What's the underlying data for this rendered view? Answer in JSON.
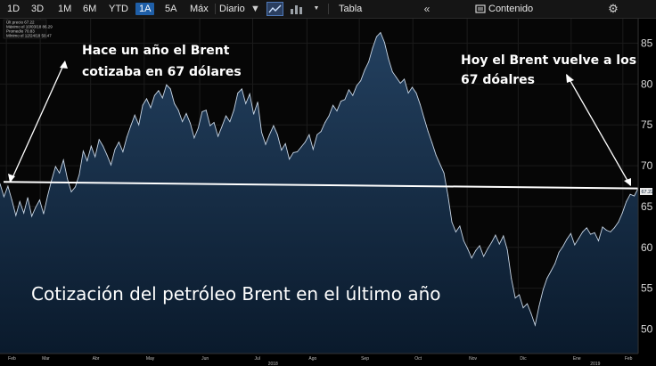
{
  "toolbar": {
    "ranges": [
      "1D",
      "3D",
      "1M",
      "6M",
      "YTD",
      "1A",
      "5A",
      "Máx"
    ],
    "active_range": "1A",
    "frequency": "Diario",
    "table_label": "Tabla",
    "content_label": "Contenido",
    "icons": {
      "dropdown": "dropdown-arrow-icon",
      "line_chart": "line-chart-icon",
      "bar_chart": "bar-chart-icon",
      "small_dropdown": "small-dropdown-icon",
      "collapse": "double-chevron-left-icon",
      "content": "content-settings-icon",
      "gear": "gear-icon"
    }
  },
  "legend": [
    "Últ precio  67.22",
    "Máximo el 10/03/18  86.29",
    "Promedio  70.83",
    "Mínimo el 12/24/18  50.47"
  ],
  "annotations": {
    "left": [
      "Hace un año el Brent",
      "cotizaba en 67 dólares"
    ],
    "right": [
      "Hoy el Brent vuelve  a los",
      "67 dóalres"
    ],
    "title": "Cotización del petróleo Brent en el último año"
  },
  "last_price_badge": "67.22",
  "chart_data": {
    "type": "area",
    "ylim": [
      47,
      88
    ],
    "yticks": [
      50,
      55,
      60,
      65,
      70,
      75,
      80,
      85
    ],
    "x_month_labels": [
      "Feb",
      "Mar",
      "Abr",
      "May",
      "Jun",
      "Jul",
      "Ago",
      "Sep",
      "Oct",
      "Nov",
      "Dic",
      "Ene",
      "Feb"
    ],
    "x_year_labels": [
      "2018",
      "2019"
    ],
    "reference_line": 67.22,
    "stats": {
      "last": 67.22,
      "high": 86.29,
      "high_date": "10/03/18",
      "average": 70.83,
      "low": 50.47,
      "low_date": "12/24/18"
    },
    "series": [
      {
        "values": [
          67.8,
          66.2,
          67.5,
          65.8,
          63.9,
          65.6,
          64.2,
          66.1,
          63.8,
          64.9,
          65.8,
          64.1,
          66.3,
          68.2,
          69.9,
          69.1,
          70.7,
          68.4,
          66.8,
          67.4,
          68.9,
          71.8,
          70.6,
          72.4,
          71.1,
          73.2,
          72.4,
          71.3,
          70.1,
          72.0,
          72.9,
          71.7,
          73.5,
          74.9,
          76.2,
          75.0,
          77.4,
          78.2,
          77.1,
          78.6,
          79.2,
          78.3,
          79.9,
          79.4,
          77.6,
          76.8,
          75.4,
          76.4,
          75.2,
          73.4,
          74.6,
          76.6,
          76.8,
          74.9,
          75.3,
          73.6,
          74.8,
          76.1,
          75.4,
          76.8,
          78.9,
          79.4,
          77.6,
          78.8,
          76.3,
          77.8,
          74.1,
          72.6,
          73.8,
          74.9,
          73.8,
          71.9,
          72.7,
          70.8,
          71.6,
          71.7,
          72.3,
          72.9,
          73.8,
          72.0,
          73.8,
          74.2,
          75.3,
          76.1,
          77.4,
          76.7,
          77.9,
          78.1,
          79.3,
          78.6,
          79.8,
          80.4,
          81.7,
          82.7,
          84.4,
          85.8,
          86.3,
          85.1,
          83.1,
          81.5,
          80.8,
          80.1,
          80.6,
          78.9,
          79.6,
          78.9,
          77.5,
          75.8,
          74.2,
          72.8,
          71.3,
          70.2,
          69.1,
          66.4,
          63.1,
          61.9,
          62.6,
          60.8,
          59.8,
          58.7,
          59.6,
          60.2,
          58.9,
          59.8,
          60.6,
          61.5,
          60.4,
          61.4,
          59.7,
          56.2,
          53.8,
          54.2,
          52.6,
          53.1,
          51.9,
          50.47,
          52.8,
          54.8,
          56.2,
          57.1,
          58.0,
          59.4,
          60.1,
          61.0,
          61.7,
          60.3,
          61.1,
          61.9,
          62.4,
          61.6,
          61.8,
          60.8,
          62.5,
          62.1,
          61.9,
          62.4,
          63.1,
          64.2,
          65.6,
          66.5,
          66.3,
          67.22
        ]
      }
    ]
  }
}
